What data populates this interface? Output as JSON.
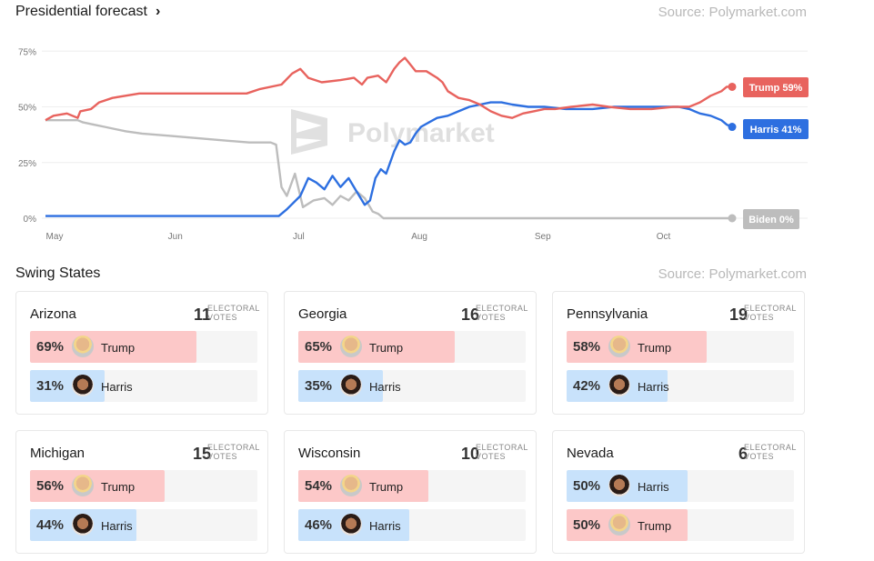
{
  "header": {
    "forecast_title": "Presidential forecast",
    "forecast_chevron": "›",
    "source": "Source: Polymarket.com",
    "swing_title": "Swing States",
    "swing_source": "Source: Polymarket.com"
  },
  "watermark": "Polymarket",
  "colors": {
    "trump": "#e8635e",
    "harris": "#2d6fe0",
    "biden": "#bdbdbd"
  },
  "chart_data": {
    "type": "line",
    "x_ticks": [
      "May",
      "Jun",
      "Jul",
      "Aug",
      "Sep",
      "Oct"
    ],
    "y_ticks": [
      "0%",
      "25%",
      "50%",
      "75%"
    ],
    "ylim": [
      0,
      80
    ],
    "grid": true,
    "series": [
      {
        "name": "Trump",
        "end_label": "Trump 59%",
        "color": "#e8635e",
        "points": [
          [
            0,
            44
          ],
          [
            3,
            46
          ],
          [
            8,
            47
          ],
          [
            12,
            45
          ],
          [
            13,
            48
          ],
          [
            17,
            49
          ],
          [
            20,
            52
          ],
          [
            25,
            54
          ],
          [
            35,
            56
          ],
          [
            45,
            56
          ],
          [
            60,
            56
          ],
          [
            75,
            56
          ],
          [
            80,
            58
          ],
          [
            88,
            60
          ],
          [
            92,
            65
          ],
          [
            95,
            67
          ],
          [
            98,
            63
          ],
          [
            103,
            61
          ],
          [
            110,
            62
          ],
          [
            115,
            63
          ],
          [
            118,
            60
          ],
          [
            120,
            63
          ],
          [
            124,
            64
          ],
          [
            127,
            61
          ],
          [
            130,
            67
          ],
          [
            132,
            70
          ],
          [
            134,
            72
          ],
          [
            136,
            69
          ],
          [
            138,
            66
          ],
          [
            142,
            66
          ],
          [
            146,
            63
          ],
          [
            148,
            61
          ],
          [
            150,
            57
          ],
          [
            154,
            54
          ],
          [
            158,
            53
          ],
          [
            162,
            51
          ],
          [
            166,
            48
          ],
          [
            170,
            46
          ],
          [
            174,
            45
          ],
          [
            178,
            47
          ],
          [
            182,
            48
          ],
          [
            186,
            49
          ],
          [
            190,
            49
          ],
          [
            196,
            50
          ],
          [
            204,
            51
          ],
          [
            210,
            50
          ],
          [
            218,
            49
          ],
          [
            226,
            49
          ],
          [
            234,
            50
          ],
          [
            240,
            50
          ],
          [
            244,
            52
          ],
          [
            248,
            55
          ],
          [
            252,
            57
          ],
          [
            254,
            59
          ],
          [
            256,
            59
          ]
        ]
      },
      {
        "name": "Harris",
        "end_label": "Harris 41%",
        "color": "#2d6fe0",
        "points": [
          [
            0,
            1
          ],
          [
            30,
            1
          ],
          [
            50,
            1
          ],
          [
            70,
            1
          ],
          [
            80,
            1
          ],
          [
            87,
            1
          ],
          [
            90,
            4
          ],
          [
            95,
            10
          ],
          [
            98,
            18
          ],
          [
            101,
            16
          ],
          [
            104,
            13
          ],
          [
            107,
            19
          ],
          [
            110,
            14
          ],
          [
            113,
            18
          ],
          [
            116,
            12
          ],
          [
            119,
            6
          ],
          [
            121,
            8
          ],
          [
            123,
            18
          ],
          [
            125,
            22
          ],
          [
            127,
            20
          ],
          [
            130,
            30
          ],
          [
            132,
            35
          ],
          [
            134,
            33
          ],
          [
            136,
            34
          ],
          [
            138,
            38
          ],
          [
            140,
            41
          ],
          [
            143,
            43
          ],
          [
            146,
            45
          ],
          [
            150,
            46
          ],
          [
            154,
            48
          ],
          [
            158,
            50
          ],
          [
            162,
            51
          ],
          [
            166,
            52
          ],
          [
            170,
            52
          ],
          [
            174,
            51
          ],
          [
            180,
            50
          ],
          [
            186,
            50
          ],
          [
            194,
            49
          ],
          [
            204,
            49
          ],
          [
            212,
            50
          ],
          [
            220,
            50
          ],
          [
            230,
            50
          ],
          [
            236,
            50
          ],
          [
            240,
            49
          ],
          [
            244,
            47
          ],
          [
            248,
            46
          ],
          [
            252,
            44
          ],
          [
            254,
            42
          ],
          [
            256,
            41
          ]
        ]
      },
      {
        "name": "Biden",
        "end_label": "Biden 0%",
        "color": "#bdbdbd",
        "points": [
          [
            0,
            44
          ],
          [
            6,
            44
          ],
          [
            12,
            44
          ],
          [
            14,
            43
          ],
          [
            18,
            42
          ],
          [
            22,
            41
          ],
          [
            26,
            40
          ],
          [
            30,
            39
          ],
          [
            36,
            38
          ],
          [
            46,
            37
          ],
          [
            56,
            36
          ],
          [
            66,
            35
          ],
          [
            76,
            34
          ],
          [
            84,
            34
          ],
          [
            86,
            33
          ],
          [
            88,
            14
          ],
          [
            90,
            10
          ],
          [
            93,
            20
          ],
          [
            96,
            5
          ],
          [
            100,
            8
          ],
          [
            104,
            9
          ],
          [
            107,
            6
          ],
          [
            110,
            10
          ],
          [
            113,
            8
          ],
          [
            116,
            12
          ],
          [
            119,
            9
          ],
          [
            122,
            3
          ],
          [
            124,
            2
          ],
          [
            126,
            0
          ],
          [
            140,
            0
          ],
          [
            180,
            0
          ],
          [
            220,
            0
          ],
          [
            256,
            0
          ]
        ]
      }
    ]
  },
  "swing_states": [
    {
      "state": "Arizona",
      "ev": "11",
      "ev_label": "ELECTORAL VOTES",
      "candidates": [
        {
          "name": "Trump",
          "pct": "69%",
          "value": 69,
          "color": "red",
          "avatar": "trump-avatar"
        },
        {
          "name": "Harris",
          "pct": "31%",
          "value": 31,
          "color": "blue",
          "avatar": "harris-avatar"
        }
      ]
    },
    {
      "state": "Georgia",
      "ev": "16",
      "ev_label": "ELECTORAL VOTES",
      "candidates": [
        {
          "name": "Trump",
          "pct": "65%",
          "value": 65,
          "color": "red",
          "avatar": "trump-avatar"
        },
        {
          "name": "Harris",
          "pct": "35%",
          "value": 35,
          "color": "blue",
          "avatar": "harris-avatar"
        }
      ]
    },
    {
      "state": "Pennsylvania",
      "ev": "19",
      "ev_label": "ELECTORAL VOTES",
      "candidates": [
        {
          "name": "Trump",
          "pct": "58%",
          "value": 58,
          "color": "red",
          "avatar": "trump-avatar"
        },
        {
          "name": "Harris",
          "pct": "42%",
          "value": 42,
          "color": "blue",
          "avatar": "harris-avatar"
        }
      ]
    },
    {
      "state": "Michigan",
      "ev": "15",
      "ev_label": "ELECTORAL VOTES",
      "candidates": [
        {
          "name": "Trump",
          "pct": "56%",
          "value": 56,
          "color": "red",
          "avatar": "trump-avatar"
        },
        {
          "name": "Harris",
          "pct": "44%",
          "value": 44,
          "color": "blue",
          "avatar": "harris-avatar"
        }
      ]
    },
    {
      "state": "Wisconsin",
      "ev": "10",
      "ev_label": "ELECTORAL VOTES",
      "candidates": [
        {
          "name": "Trump",
          "pct": "54%",
          "value": 54,
          "color": "red",
          "avatar": "trump-avatar"
        },
        {
          "name": "Harris",
          "pct": "46%",
          "value": 46,
          "color": "blue",
          "avatar": "harris-avatar"
        }
      ]
    },
    {
      "state": "Nevada",
      "ev": "6",
      "ev_label": "ELECTORAL VOTES",
      "candidates": [
        {
          "name": "Harris",
          "pct": "50%",
          "value": 50,
          "color": "blue",
          "avatar": "harris-avatar"
        },
        {
          "name": "Trump",
          "pct": "50%",
          "value": 50,
          "color": "red",
          "avatar": "trump-avatar"
        }
      ]
    }
  ]
}
